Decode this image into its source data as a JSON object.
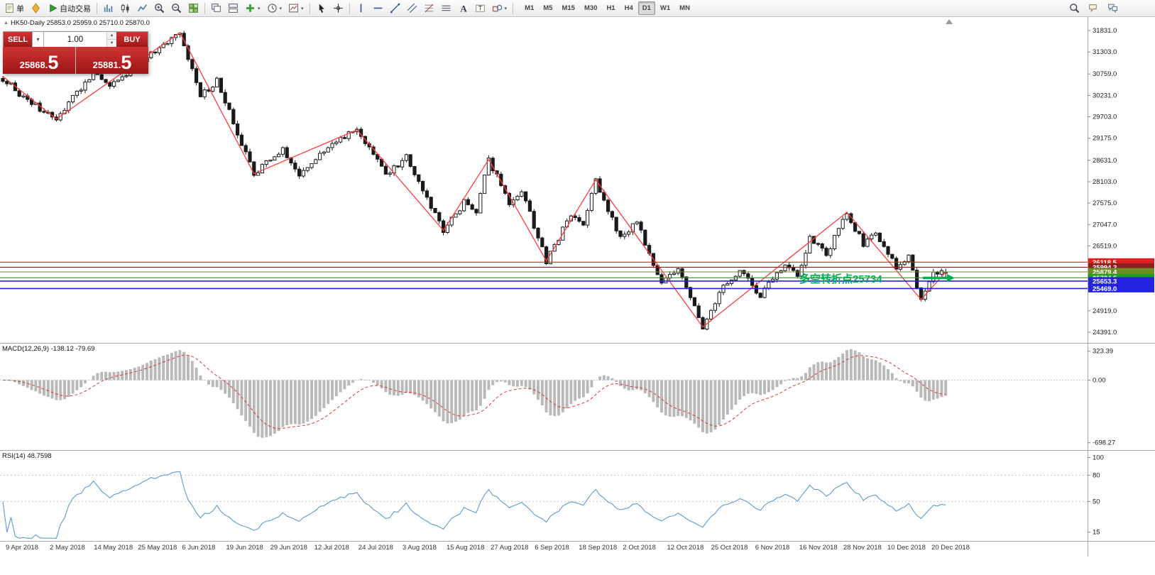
{
  "toolbar": {
    "buttons": [
      {
        "name": "new-order-button",
        "icon": "doc-icon",
        "label": "单"
      },
      {
        "name": "favorites-icon-button",
        "icon": "diamond-icon"
      },
      {
        "name": "autotrade-button",
        "icon": "play-icon",
        "label": "自动交易"
      },
      {
        "sep": true
      },
      {
        "name": "bar-chart-button",
        "icon": "bars-icon"
      },
      {
        "name": "candle-chart-button",
        "icon": "candles-icon"
      },
      {
        "name": "line-chart-button",
        "icon": "linechart-icon"
      },
      {
        "name": "zoom-in-button",
        "icon": "zoom-in-icon"
      },
      {
        "name": "zoom-out-button",
        "icon": "zoom-out-icon"
      },
      {
        "name": "tile-windows-button",
        "icon": "tile-icon"
      },
      {
        "sep": true
      },
      {
        "name": "cascade-windows-button",
        "icon": "cascade-icon"
      },
      {
        "name": "arrange-windows-button",
        "icon": "arrange-icon"
      },
      {
        "name": "add-indicator-button",
        "icon": "indicator-plus-icon",
        "caret": true
      },
      {
        "name": "period-button",
        "icon": "clock-icon",
        "caret": true
      },
      {
        "name": "template-button",
        "icon": "template-icon",
        "caret": true
      },
      {
        "sep": true
      },
      {
        "name": "cursor-tool",
        "icon": "cursor-icon"
      },
      {
        "name": "crosshair-tool",
        "icon": "crosshair-icon"
      },
      {
        "sep": true
      },
      {
        "name": "vertical-line-tool",
        "icon": "vline-icon"
      },
      {
        "name": "horizontal-line-tool",
        "icon": "hline-icon"
      },
      {
        "name": "trendline-tool",
        "icon": "trendline-icon"
      },
      {
        "name": "channel-tool",
        "icon": "channel-icon"
      },
      {
        "name": "fibonacci-tool",
        "icon": "fibo-icon"
      },
      {
        "name": "gridlines-tool",
        "icon": "gridlines-icon"
      },
      {
        "name": "text-tool",
        "icon": "text-icon"
      },
      {
        "name": "label-tool",
        "icon": "label-icon"
      },
      {
        "name": "shapes-tool",
        "icon": "shapes-icon",
        "caret": true
      },
      {
        "sep": true
      }
    ],
    "timeframes": [
      "M1",
      "M5",
      "M15",
      "M30",
      "H1",
      "H4",
      "D1",
      "W1",
      "MN"
    ],
    "active_timeframe": "D1",
    "right_buttons": [
      {
        "name": "search-button",
        "icon": "search-icon"
      },
      {
        "name": "chat-button",
        "icon": "chat-icon"
      },
      {
        "name": "community-button",
        "icon": "chat2-icon"
      }
    ]
  },
  "chart": {
    "title": "HK50-Daily 25853.0 25959.0 25710.0 25870.0",
    "symbol": "HK50",
    "period": "Daily",
    "open": "25853.0",
    "high": "25959.0",
    "low": "25710.0",
    "close": "25870.0"
  },
  "trade_widget": {
    "sell_label": "SELL",
    "buy_label": "BUY",
    "volume": "1.00",
    "sell_price": "25868.5",
    "buy_price": "25881.5"
  },
  "price_axis": {
    "ticks": [
      "31831.0",
      "31303.0",
      "30759.0",
      "30231.0",
      "29703.0",
      "29175.0",
      "28631.0",
      "28103.0",
      "27575.0",
      "27047.0",
      "26519.0",
      "24919.0",
      "24391.0"
    ]
  },
  "hlines": [
    {
      "price": 26118.5,
      "label": "26118.5",
      "color": "#e02020"
    },
    {
      "price": 25994.2,
      "label": "25994.2",
      "color": "#8b1f1f"
    },
    {
      "price": 25879.4,
      "label": "25879.4",
      "color": "#6b8e23"
    },
    {
      "price": 25734.5,
      "label": "25734.5",
      "color": "#22a022"
    },
    {
      "price": 25653.3,
      "label": "25653.3",
      "color": "#2222e0"
    },
    {
      "price": 25469.0,
      "label": "25469.0",
      "color": "#2222e0"
    }
  ],
  "annotation": {
    "text": "多空转折点25734",
    "color": "#00b050"
  },
  "macd": {
    "label": "MACD(12,26,9) -138.12 -79.69",
    "axis_ticks": [
      "323.39",
      "0.00",
      "-698.27"
    ],
    "axis_values": [
      323.39,
      0,
      -698.27
    ]
  },
  "rsi": {
    "label": "RSI(14) 48.7598",
    "axis_ticks": [
      "100",
      "80",
      "50",
      "15"
    ],
    "axis_values": [
      100,
      80,
      50,
      15
    ],
    "levels": [
      80,
      50
    ]
  },
  "date_axis": {
    "labels": [
      "9 Apr 2018",
      "2 May 2018",
      "14 May 2018",
      "25 May 2018",
      "6 Jun 2018",
      "19 Jun 2018",
      "29 Jun 2018",
      "12 Jul 2018",
      "24 Jul 2018",
      "3 Aug 2018",
      "15 Aug 2018",
      "27 Aug 2018",
      "6 Sep 2018",
      "18 Sep 2018",
      "2 Oct 2018",
      "12 Oct 2018",
      "25 Oct 2018",
      "6 Nov 2018",
      "16 Nov 2018",
      "28 Nov 2018",
      "10 Dec 2018",
      "20 Dec 2018"
    ]
  },
  "chart_data": {
    "type": "candlestick",
    "symbol": "HK50",
    "timeframe": "Daily",
    "candle_count": 230,
    "visible_price_range": [
      24391,
      31831
    ],
    "last_candle": {
      "open": 25853.0,
      "high": 25959.0,
      "low": 25710.0,
      "close": 25870.0
    },
    "bid": 25868.5,
    "ask": 25881.5,
    "horizontal_levels": [
      26118.5,
      25994.2,
      25879.4,
      25734.5,
      25653.3,
      25469.0
    ],
    "macd_current": [
      -138.12,
      -79.69
    ],
    "rsi_current": 48.7598,
    "zigzag_points": [
      [
        0,
        30700
      ],
      [
        13,
        29650
      ],
      [
        43,
        31780
      ],
      [
        61,
        28300
      ],
      [
        86,
        29380
      ],
      [
        107,
        26900
      ],
      [
        118,
        28650
      ],
      [
        132,
        26150
      ],
      [
        144,
        28150
      ],
      [
        170,
        24520
      ],
      [
        205,
        27350
      ],
      [
        223,
        25200
      ],
      [
        229,
        25870
      ]
    ],
    "path_points": [
      [
        0,
        30650
      ],
      [
        6,
        30100
      ],
      [
        13,
        29650
      ],
      [
        22,
        30800
      ],
      [
        26,
        30450
      ],
      [
        43,
        31780
      ],
      [
        48,
        30200
      ],
      [
        52,
        30600
      ],
      [
        61,
        28300
      ],
      [
        68,
        28900
      ],
      [
        72,
        28300
      ],
      [
        78,
        28900
      ],
      [
        86,
        29380
      ],
      [
        93,
        28300
      ],
      [
        98,
        28700
      ],
      [
        107,
        26900
      ],
      [
        112,
        27600
      ],
      [
        115,
        27300
      ],
      [
        118,
        28650
      ],
      [
        123,
        27600
      ],
      [
        126,
        27900
      ],
      [
        132,
        26150
      ],
      [
        138,
        27300
      ],
      [
        141,
        27000
      ],
      [
        144,
        28150
      ],
      [
        150,
        26700
      ],
      [
        154,
        27100
      ],
      [
        160,
        25600
      ],
      [
        164,
        26000
      ],
      [
        170,
        24520
      ],
      [
        175,
        25500
      ],
      [
        179,
        25900
      ],
      [
        184,
        25300
      ],
      [
        190,
        26100
      ],
      [
        193,
        25800
      ],
      [
        196,
        26700
      ],
      [
        200,
        26300
      ],
      [
        205,
        27350
      ],
      [
        209,
        26550
      ],
      [
        212,
        26850
      ],
      [
        217,
        26000
      ],
      [
        220,
        26250
      ],
      [
        223,
        25200
      ],
      [
        226,
        25800
      ],
      [
        229,
        25870
      ]
    ]
  }
}
